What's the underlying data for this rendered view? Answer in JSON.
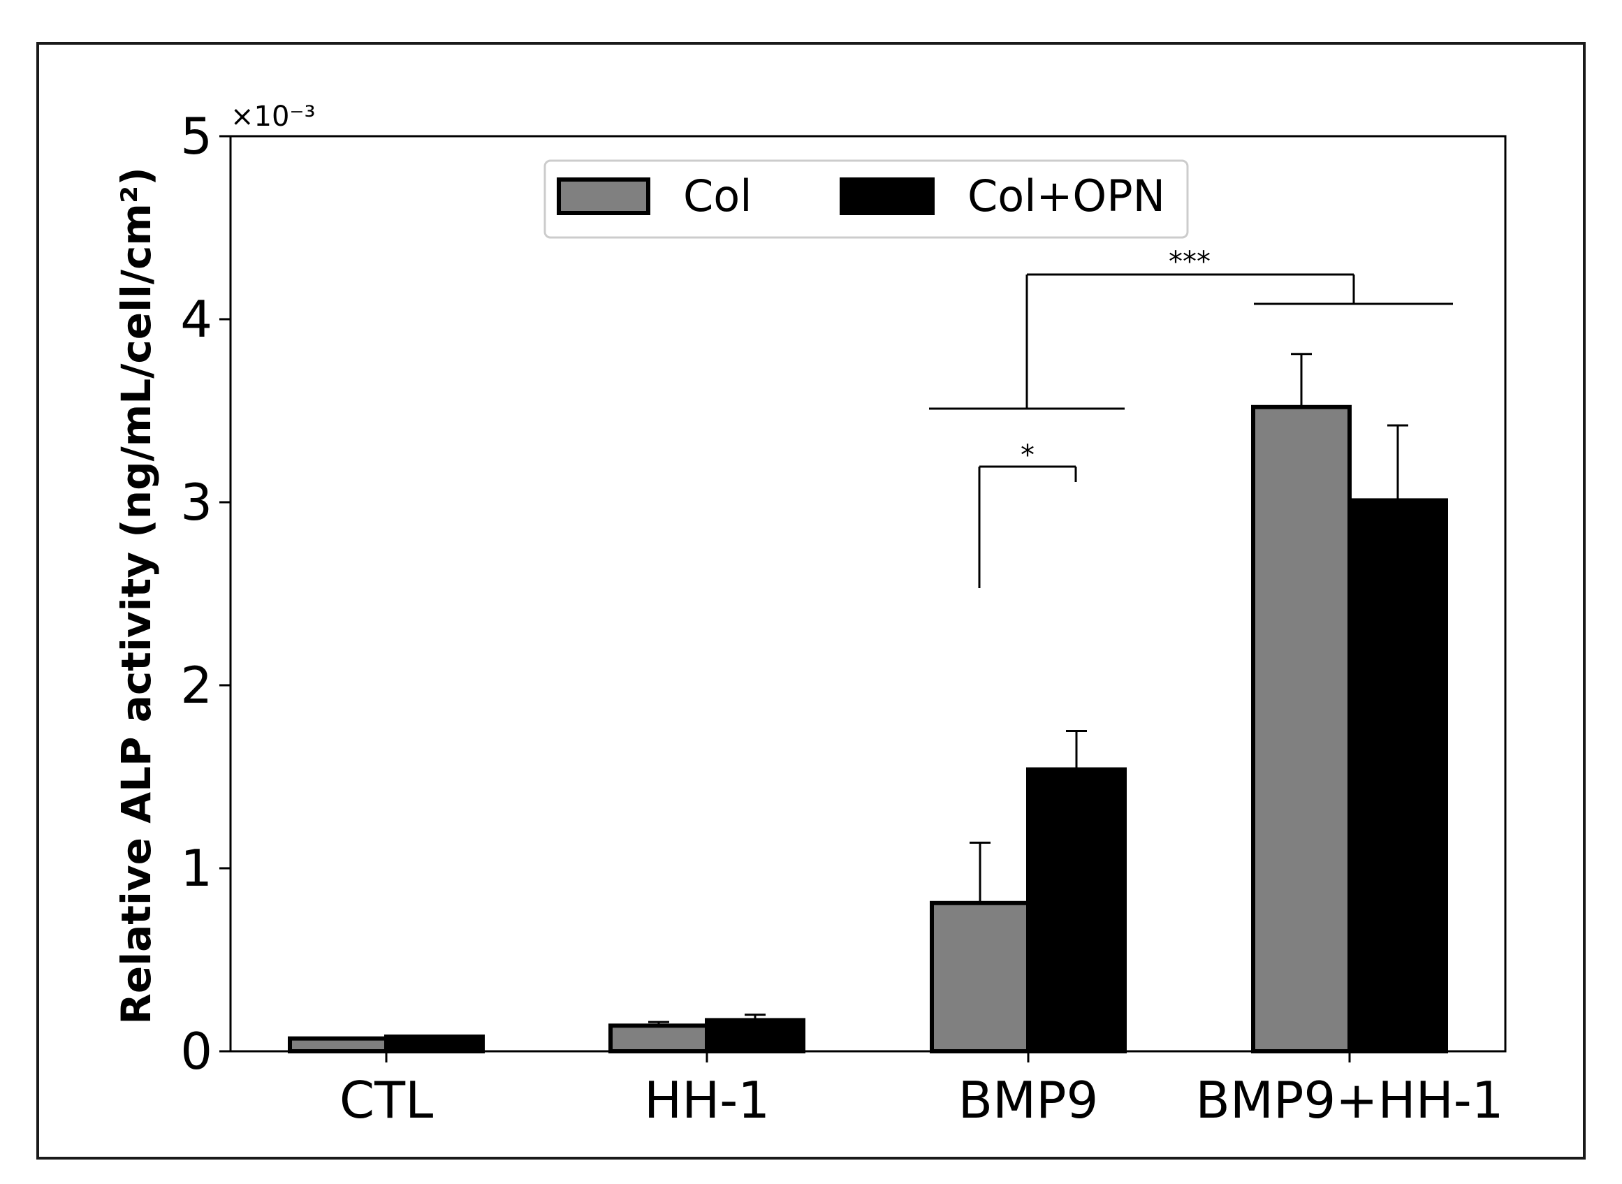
{
  "chart_data": {
    "type": "bar",
    "title": "",
    "xlabel": "",
    "ylabel": "Relative ALP activity (ng/mL/cell/cm²)",
    "y_multiplier_label": "×10⁻³",
    "ylim": [
      0,
      5
    ],
    "yticks": [
      "0",
      "1",
      "2",
      "3",
      "4",
      "5"
    ],
    "categories": [
      "CTL",
      "HH-1",
      "BMP9",
      "BMP9+HH-1"
    ],
    "series": [
      {
        "name": "Col",
        "color": "#808080",
        "values": [
          0.07,
          0.14,
          0.81,
          3.52
        ],
        "errors": [
          0.0,
          0.02,
          0.33,
          0.29
        ]
      },
      {
        "name": "Col+OPN",
        "color": "#000000",
        "values": [
          0.08,
          0.17,
          1.54,
          3.01
        ],
        "errors": [
          0.0,
          0.03,
          0.21,
          0.41
        ]
      }
    ],
    "legend": {
      "placement": "top-center"
    },
    "grid": false,
    "significance": [
      {
        "label": "*",
        "between": "BMP9 Col vs BMP9 Col+OPN"
      },
      {
        "label": "***",
        "between": "BMP9 vs BMP9+HH-1"
      }
    ]
  }
}
